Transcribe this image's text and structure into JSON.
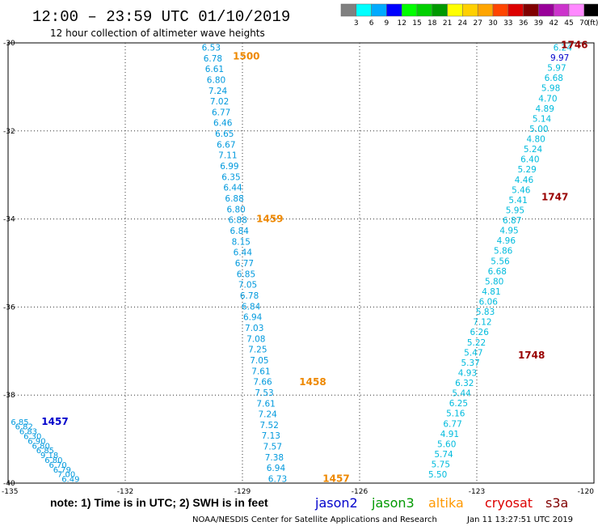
{
  "title": "12:00 – 23:59 UTC 01/10/2019",
  "subtitle": "12 hour collection of altimeter wave heights",
  "legend": {
    "labels": [
      "3",
      "6",
      "9",
      "12",
      "15",
      "18",
      "21",
      "24",
      "27",
      "30",
      "33",
      "36",
      "39",
      "42",
      "45",
      "70"
    ],
    "unit": "(ft)",
    "colors": [
      "#808080",
      "#00ffff",
      "#00aaff",
      "#0000ff",
      "#00ff00",
      "#00d000",
      "#009900",
      "#ffff00",
      "#ffd000",
      "#ffa500",
      "#ff4500",
      "#dd0000",
      "#800000",
      "#990099",
      "#cc33cc",
      "#ff88ff",
      "#000000"
    ]
  },
  "y_axis": {
    "ticks": [
      "-30",
      "-32",
      "-34",
      "-36",
      "-38",
      "-40"
    ]
  },
  "x_axis": {
    "ticks": [
      "-135",
      "-132",
      "-129",
      "-126",
      "-123",
      "-120"
    ]
  },
  "note": "note: 1) Time is in UTC; 2) SWH is in feet",
  "satellites": [
    {
      "name": "jason2",
      "color": "#0000cc"
    },
    {
      "name": "jason3",
      "color": "#009900"
    },
    {
      "name": "altika",
      "color": "#ff9900"
    },
    {
      "name": "cryosat",
      "color": "#dd0000"
    },
    {
      "name": "s3a",
      "color": "#800000"
    }
  ],
  "footer": {
    "credit": "NOAA/NESDIS Center for Satellite Applications and Research",
    "timestamp": "Jan 11 13:27:51 UTC 2019"
  },
  "chart_data": {
    "type": "scatter",
    "xlim": [
      -135,
      -120
    ],
    "ylim": [
      -40,
      -30
    ],
    "x_unit": "longitude",
    "y_unit": "latitude",
    "tracks": [
      {
        "id": "track-a",
        "satellite": "jason2",
        "color": "#0099dd",
        "lon_start": -129.8,
        "lat_start": -30.1,
        "lon_end": -128.1,
        "lat_end": -39.9,
        "values": [
          "6.53",
          "6.78",
          "6.61",
          "6.80",
          "7.24",
          "7.02",
          "6.77",
          "6.46",
          "6.65",
          "6.67",
          "7.11",
          "6.99",
          "6.35",
          "6.44",
          "6.88",
          "6.80",
          "6.88",
          "6.84",
          "8.15",
          "6.44",
          "6.77",
          "6.85",
          "7.05",
          "6.78",
          "6.84",
          "6.94",
          "7.03",
          "7.08",
          "7.25",
          "7.05",
          "7.61",
          "7.66",
          "7.53",
          "7.61",
          "7.24",
          "7.52",
          "7.13",
          "7.57",
          "7.38",
          "6.94",
          "6.73"
        ],
        "times": [
          {
            "label": "1500",
            "lat": -30.3,
            "lon": -128.9,
            "color": "#ee8800"
          },
          {
            "label": "1459",
            "lat": -34.0,
            "lon": -128.3,
            "color": "#ee8800"
          },
          {
            "label": "1458",
            "lat": -37.7,
            "lon": -127.2,
            "color": "#ee8800"
          },
          {
            "label": "1457",
            "lat": -39.9,
            "lon": -126.6,
            "color": "#ee8800"
          }
        ]
      },
      {
        "id": "track-b",
        "satellite": "jason2",
        "color": "#0099dd",
        "lon_start": -134.7,
        "lat_start": -38.6,
        "lon_end": -133.4,
        "lat_end": -39.9,
        "values": [
          "6.85",
          "6.82",
          "6.83",
          "6.30",
          "6.90",
          "6.80",
          "6.85",
          "9.18",
          "6.80",
          "6.70",
          "6.79",
          "7.00",
          "6.49"
        ],
        "times": [
          {
            "label": "1457",
            "lat": -38.6,
            "lon": -133.8,
            "color": "#0000cc"
          }
        ]
      },
      {
        "id": "track-c",
        "satellite": "jason3",
        "color": "#00bbdd",
        "lon_start": -120.8,
        "lat_start": -30.1,
        "lon_end": -124.0,
        "lat_end": -39.8,
        "values": [
          "6.24",
          "9.97",
          "5.97",
          "6.68",
          "5.98",
          "4.70",
          "4.89",
          "5.14",
          "5.00",
          "4.80",
          "5.24",
          "6.40",
          "5.29",
          "4.46",
          "5.46",
          "5.41",
          "5.95",
          "6.87",
          "4.95",
          "4.96",
          "5.86",
          "5.56",
          "6.68",
          "5.80",
          "4.81",
          "6.06",
          "5.83",
          "7.12",
          "6.26",
          "5.22",
          "5.47",
          "5.37",
          "4.93",
          "6.32",
          "5.44",
          "6.25",
          "5.16",
          "6.77",
          "4.91",
          "5.60",
          "5.74",
          "5.75",
          "5.50"
        ],
        "times": [
          {
            "label": "1746",
            "lat": -30.05,
            "lon": -120.5,
            "color": "#990000"
          },
          {
            "label": "1747",
            "lat": -33.5,
            "lon": -121.0,
            "color": "#990000"
          },
          {
            "label": "1748",
            "lat": -37.1,
            "lon": -121.6,
            "color": "#990000"
          }
        ]
      }
    ],
    "special_values": [
      {
        "track": "track-c",
        "index": 1,
        "color": "#0000cc"
      }
    ]
  }
}
